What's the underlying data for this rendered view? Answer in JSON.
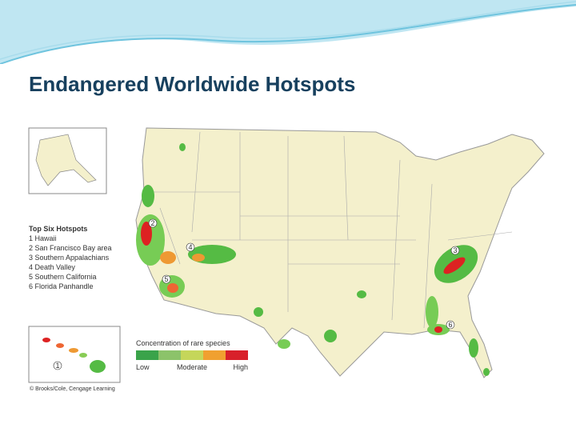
{
  "header": {
    "title": "Endangered Worldwide Hotspots"
  },
  "legend": {
    "heading": "Top Six Hotspots",
    "items": [
      "1 Hawaii",
      "2 San Francisco Bay area",
      "3 Southern Appalachians",
      "4 Death Valley",
      "5 Southern California",
      "6 Florida Panhandle"
    ]
  },
  "scale": {
    "title": "Concentration of rare species",
    "labels": [
      "Low",
      "Moderate",
      "High"
    ]
  },
  "markers": [
    "1",
    "2",
    "3",
    "4",
    "5",
    "6"
  ],
  "credit": "© Brooks/Cole, Cengage Learning"
}
